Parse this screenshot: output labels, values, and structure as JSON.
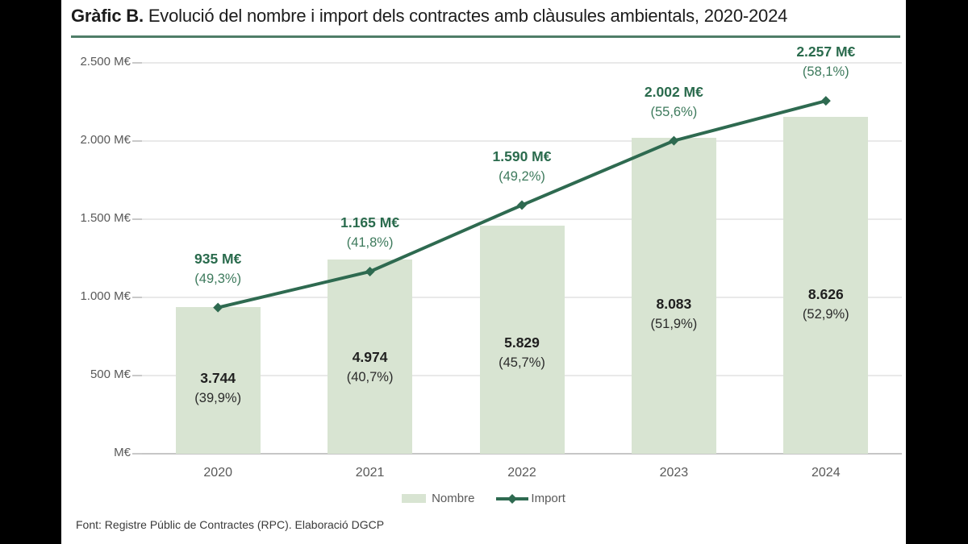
{
  "window": {
    "outer_background": "#000000",
    "panel_background": "#ffffff"
  },
  "header": {
    "title_prefix": "Gràfic B.",
    "title_rest": " Evolució del nombre i import dels contractes amb clàusules ambientals, 2020-2024",
    "rule_color": "#4f7d68"
  },
  "legend": {
    "items": [
      {
        "label": "Nombre",
        "marker": "bar-swatch"
      },
      {
        "label": "Import",
        "marker": "line-with-diamond"
      }
    ]
  },
  "footer": {
    "source": "Font: Registre Públic de Contractes (RPC). Elaboració DGCP"
  },
  "chart_data": {
    "type": "bar",
    "subtype": "combo bar + line, line on primary M€ axis, bars on hidden secondary count axis",
    "title": "Gràfic B. Evolució del nombre i import dels contractes amb clàusules ambientals, 2020-2024",
    "categories": [
      "2020",
      "2021",
      "2022",
      "2023",
      "2024"
    ],
    "series": [
      {
        "name": "Nombre",
        "type": "bar",
        "axis": "secondary",
        "values": [
          3744,
          4974,
          5829,
          8083,
          8626
        ],
        "labels": [
          {
            "value": "3.744",
            "pct": "(39,9%)"
          },
          {
            "value": "4.974",
            "pct": "(40,7%)"
          },
          {
            "value": "5.829",
            "pct": "(45,7%)"
          },
          {
            "value": "8.083",
            "pct": "(51,9%)"
          },
          {
            "value": "8.626",
            "pct": "(52,9%)"
          }
        ]
      },
      {
        "name": "Import",
        "type": "line",
        "axis": "primary",
        "values": [
          935,
          1165,
          1590,
          2002,
          2257
        ],
        "labels": [
          {
            "value": "935 M€",
            "pct": "(49,3%)"
          },
          {
            "value": "1.165 M€",
            "pct": "(41,8%)"
          },
          {
            "value": "1.590 M€",
            "pct": "(49,2%)"
          },
          {
            "value": "2.002 M€",
            "pct": "(55,6%)"
          },
          {
            "value": "2.257 M€",
            "pct": "(58,1%)"
          }
        ]
      }
    ],
    "primary_axis": {
      "unit": "M€",
      "max": 2500,
      "ticks": [
        {
          "value": 2500,
          "label": "2.500 M€"
        },
        {
          "value": 2000,
          "label": "2.000 M€"
        },
        {
          "value": 1500,
          "label": "1.500 M€"
        },
        {
          "value": 1000,
          "label": "1.000 M€"
        },
        {
          "value": 500,
          "label": "500 M€"
        },
        {
          "value": 0,
          "label": "M€"
        }
      ]
    },
    "secondary_axis": {
      "max": 10000,
      "visible": false
    },
    "grid": true,
    "legend_position": "bottom",
    "colors": {
      "bar": "#d8e4d2",
      "line": "#2e6a50",
      "green_value_label": "#2a6b4d",
      "green_pct_label": "#3d7a5c",
      "dark_value_label": "#1f1f1f",
      "dark_pct_label": "#2b2b2b",
      "axis_text": "#595959"
    }
  }
}
